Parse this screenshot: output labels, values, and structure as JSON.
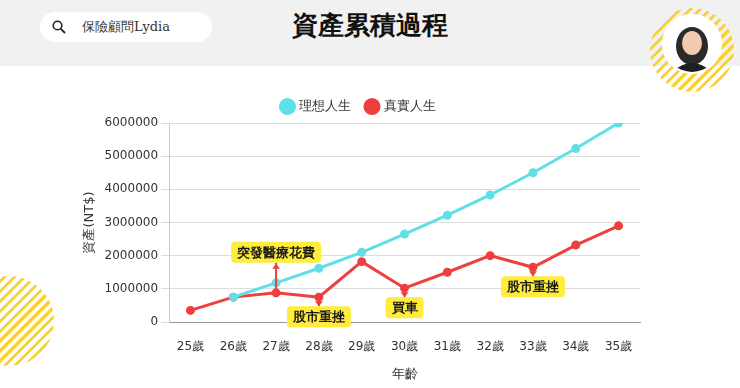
{
  "page": {
    "search_text": "保險顧問Lydia"
  },
  "chart_data": {
    "type": "line",
    "title": "資產累積過程",
    "x_label": "年齡",
    "y_label": "資產(NT$)",
    "categories": [
      "25歲",
      "26歲",
      "27歲",
      "28歲",
      "29歲",
      "30歲",
      "31歲",
      "32歲",
      "33歲",
      "34歲",
      "35歲"
    ],
    "series": [
      {
        "name": "理想人生",
        "color": "#5fe0e6",
        "marker": "circle",
        "values": [
          null,
          750000,
          1180000,
          1620000,
          2100000,
          2650000,
          3220000,
          3830000,
          4500000,
          5230000,
          6000000
        ]
      },
      {
        "name": "真實人生",
        "color": "#ef3e3e",
        "marker": "circle",
        "values": [
          350000,
          750000,
          880000,
          750000,
          1820000,
          1020000,
          1500000,
          2000000,
          1650000,
          2320000,
          2900000
        ]
      }
    ],
    "annotations": [
      {
        "text": "突發醫療花費",
        "x": "27歲",
        "series": "真實人生"
      },
      {
        "text": "股市重挫",
        "x": "28歲",
        "series": "真實人生"
      },
      {
        "text": "買車",
        "x": "30歲",
        "series": "真實人生"
      },
      {
        "text": "股市重挫",
        "x": "33歲",
        "series": "真實人生"
      }
    ],
    "ylim": [
      0,
      6000000
    ],
    "yticks": [
      0,
      1000000,
      2000000,
      3000000,
      4000000,
      5000000,
      6000000
    ],
    "grid": true,
    "legend": "top"
  }
}
